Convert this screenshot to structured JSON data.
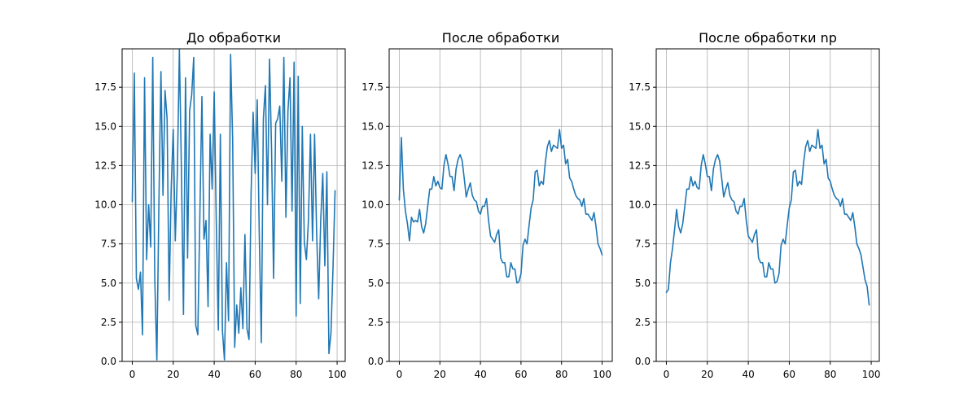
{
  "colors": {
    "line": "#1f77b4",
    "grid": "#b0b0b0",
    "axes": "#000000"
  },
  "chart_data": [
    {
      "type": "line",
      "title": "До обработки",
      "xlim": [
        -4.95,
        103.95
      ],
      "ylim": [
        0,
        19.95
      ],
      "xticks": [
        0,
        20,
        40,
        60,
        80,
        100
      ],
      "yticks": [
        0.0,
        2.5,
        5.0,
        7.5,
        10.0,
        12.5,
        15.0,
        17.5
      ],
      "xtick_labels": [
        "0",
        "20",
        "40",
        "60",
        "80",
        "100"
      ],
      "ytick_labels": [
        "0.0",
        "2.5",
        "5.0",
        "7.5",
        "10.0",
        "12.5",
        "15.0",
        "17.5"
      ],
      "grid": true,
      "series": [
        {
          "x": [
            0,
            1,
            2,
            3,
            4,
            5,
            6,
            7,
            8,
            9,
            10,
            11,
            12,
            13,
            14,
            15,
            16,
            17,
            18,
            19,
            20,
            21,
            22,
            23,
            24,
            25,
            26,
            27,
            28,
            29,
            30,
            31,
            32,
            33,
            34,
            35,
            36,
            37,
            38,
            39,
            40,
            41,
            42,
            43,
            44,
            45,
            46,
            47,
            48,
            49,
            50,
            51,
            52,
            53,
            54,
            55,
            56,
            57,
            58,
            59,
            60,
            61,
            62,
            63,
            64,
            65,
            66,
            67,
            68,
            69,
            70,
            71,
            72,
            73,
            74,
            75,
            76,
            77,
            78,
            79,
            80,
            81,
            82,
            83,
            84,
            85,
            86,
            87,
            88,
            89,
            90,
            91,
            92,
            93,
            94,
            95,
            96,
            97,
            98,
            99
          ],
          "y": [
            10.2,
            18.4,
            5.3,
            4.6,
            5.7,
            1.7,
            18.1,
            6.5,
            10.0,
            7.3,
            19.4,
            5.2,
            0.1,
            10.0,
            18.5,
            10.6,
            17.3,
            15.5,
            3.9,
            11.0,
            14.8,
            7.7,
            12.0,
            19.9,
            12.2,
            3.0,
            18.1,
            6.6,
            16.0,
            17.0,
            19.4,
            2.3,
            1.7,
            9.3,
            16.9,
            7.8,
            9.0,
            3.5,
            14.5,
            11.0,
            17.2,
            9.0,
            2.0,
            14.5,
            2.0,
            0.1,
            6.3,
            2.6,
            19.6,
            14.2,
            0.9,
            3.6,
            1.8,
            4.7,
            2.1,
            8.1,
            2.1,
            1.4,
            10.7,
            15.9,
            12.0,
            16.7,
            8.1,
            1.2,
            15.5,
            17.6,
            10.0,
            19.3,
            13.5,
            5.3,
            15.2,
            15.5,
            16.3,
            11.5,
            19.4,
            9.2,
            16.0,
            18.1,
            9.6,
            19.1,
            2.9,
            18.2,
            3.7,
            15.0,
            7.6,
            6.5,
            9.0,
            14.5,
            7.7,
            14.5,
            8.2,
            4.0,
            9.0,
            12.0,
            6.1,
            12.1,
            0.5,
            1.8,
            6.0,
            10.9
          ]
        }
      ]
    },
    {
      "type": "line",
      "title": "После обработки",
      "xlim": [
        -5.0,
        105.0
      ],
      "ylim": [
        0,
        19.95
      ],
      "xticks": [
        0,
        20,
        40,
        60,
        80,
        100
      ],
      "yticks": [
        0.0,
        2.5,
        5.0,
        7.5,
        10.0,
        12.5,
        15.0,
        17.5
      ],
      "xtick_labels": [
        "0",
        "20",
        "40",
        "60",
        "80",
        "100"
      ],
      "ytick_labels": [
        "0.0",
        "2.5",
        "5.0",
        "7.5",
        "10.0",
        "12.5",
        "15.0",
        "17.5"
      ],
      "grid": true,
      "series": [
        {
          "x": [
            0,
            1,
            2,
            3,
            4,
            5,
            6,
            7,
            8,
            9,
            10,
            11,
            12,
            13,
            14,
            15,
            16,
            17,
            18,
            19,
            20,
            21,
            22,
            23,
            24,
            25,
            26,
            27,
            28,
            29,
            30,
            31,
            32,
            33,
            34,
            35,
            36,
            37,
            38,
            39,
            40,
            41,
            42,
            43,
            44,
            45,
            46,
            47,
            48,
            49,
            50,
            51,
            52,
            53,
            54,
            55,
            56,
            57,
            58,
            59,
            60,
            61,
            62,
            63,
            64,
            65,
            66,
            67,
            68,
            69,
            70,
            71,
            72,
            73,
            74,
            75,
            76,
            77,
            78,
            79,
            80,
            81,
            82,
            83,
            84,
            85,
            86,
            87,
            88,
            89,
            90,
            91,
            92,
            93,
            94,
            95,
            96,
            97,
            98,
            99,
            100
          ],
          "y": [
            10.3,
            14.3,
            11.0,
            9.6,
            8.8,
            7.7,
            9.2,
            8.9,
            9.0,
            8.9,
            9.7,
            8.6,
            8.2,
            8.8,
            9.9,
            11.0,
            11.0,
            11.8,
            11.2,
            11.5,
            11.1,
            11.0,
            12.5,
            13.2,
            12.6,
            11.8,
            11.8,
            10.9,
            12.3,
            12.9,
            13.2,
            12.8,
            11.7,
            10.5,
            11.0,
            11.4,
            10.6,
            10.3,
            10.2,
            9.6,
            9.4,
            9.9,
            9.9,
            10.4,
            9.0,
            8.0,
            7.8,
            7.6,
            8.1,
            8.4,
            6.6,
            6.3,
            6.3,
            5.4,
            5.4,
            6.3,
            5.9,
            5.9,
            5.0,
            5.1,
            5.6,
            7.4,
            7.8,
            7.5,
            8.7,
            9.8,
            10.3,
            12.1,
            12.2,
            11.2,
            11.5,
            11.3,
            12.7,
            13.7,
            14.1,
            13.4,
            13.8,
            13.7,
            13.6,
            14.8,
            13.6,
            13.8,
            12.6,
            12.9,
            11.7,
            11.5,
            11.0,
            10.6,
            10.4,
            10.3,
            9.9,
            10.4,
            9.4,
            9.4,
            9.2,
            9.0,
            9.5,
            8.6,
            7.5,
            7.2,
            6.8
          ]
        }
      ]
    },
    {
      "type": "line",
      "title": "После обработки np",
      "xlim": [
        -4.95,
        103.95
      ],
      "ylim": [
        0,
        19.95
      ],
      "xticks": [
        0,
        20,
        40,
        60,
        80,
        100
      ],
      "yticks": [
        0.0,
        2.5,
        5.0,
        7.5,
        10.0,
        12.5,
        15.0,
        17.5
      ],
      "xtick_labels": [
        "0",
        "20",
        "40",
        "60",
        "80",
        "100"
      ],
      "ytick_labels": [
        "0.0",
        "2.5",
        "5.0",
        "7.5",
        "10.0",
        "12.5",
        "15.0",
        "17.5"
      ],
      "grid": true,
      "series": [
        {
          "x": [
            0,
            1,
            2,
            3,
            4,
            5,
            6,
            7,
            8,
            9,
            10,
            11,
            12,
            13,
            14,
            15,
            16,
            17,
            18,
            19,
            20,
            21,
            22,
            23,
            24,
            25,
            26,
            27,
            28,
            29,
            30,
            31,
            32,
            33,
            34,
            35,
            36,
            37,
            38,
            39,
            40,
            41,
            42,
            43,
            44,
            45,
            46,
            47,
            48,
            49,
            50,
            51,
            52,
            53,
            54,
            55,
            56,
            57,
            58,
            59,
            60,
            61,
            62,
            63,
            64,
            65,
            66,
            67,
            68,
            69,
            70,
            71,
            72,
            73,
            74,
            75,
            76,
            77,
            78,
            79,
            80,
            81,
            82,
            83,
            84,
            85,
            86,
            87,
            88,
            89,
            90,
            91,
            92,
            93,
            94,
            95,
            96,
            97,
            98,
            99
          ],
          "y": [
            4.4,
            4.6,
            6.3,
            7.2,
            8.4,
            9.7,
            8.6,
            8.2,
            8.8,
            9.9,
            11.0,
            11.0,
            11.8,
            11.2,
            11.5,
            11.1,
            11.0,
            12.5,
            13.2,
            12.6,
            11.8,
            11.8,
            10.9,
            12.3,
            12.9,
            13.2,
            12.8,
            11.7,
            10.5,
            11.0,
            11.4,
            10.6,
            10.3,
            10.2,
            9.6,
            9.4,
            9.9,
            9.9,
            10.4,
            9.0,
            8.0,
            7.8,
            7.6,
            8.1,
            8.4,
            6.6,
            6.3,
            6.3,
            5.4,
            5.4,
            6.3,
            5.9,
            5.9,
            5.0,
            5.1,
            5.6,
            7.4,
            7.8,
            7.5,
            8.7,
            9.8,
            10.3,
            12.1,
            12.2,
            11.2,
            11.5,
            11.3,
            12.7,
            13.7,
            14.1,
            13.4,
            13.8,
            13.7,
            13.6,
            14.8,
            13.6,
            13.8,
            12.6,
            12.9,
            11.7,
            11.5,
            11.0,
            10.6,
            10.4,
            10.3,
            9.9,
            10.4,
            9.4,
            9.4,
            9.2,
            9.0,
            9.5,
            8.6,
            7.5,
            7.2,
            6.8,
            6.0,
            5.2,
            4.8,
            3.6
          ]
        }
      ]
    }
  ]
}
